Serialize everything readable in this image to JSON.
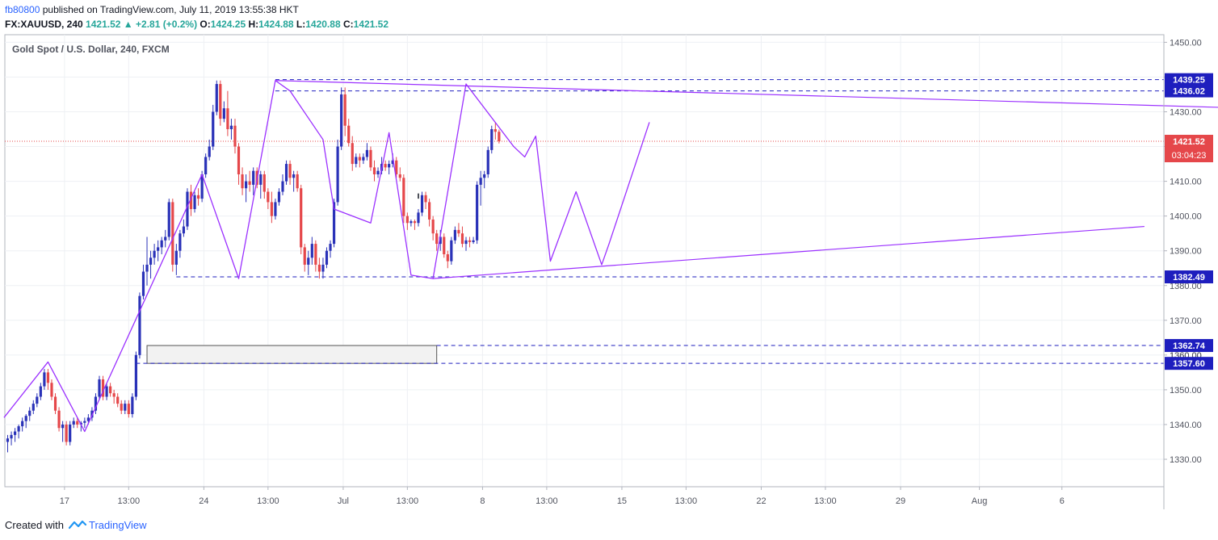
{
  "header": {
    "author": "fb80800",
    "published_text": "published on TradingView.com, July 11, 2019 13:55:38 HKT",
    "symbol": "FX:XAUUSD, 240",
    "last": "1421.52",
    "change_icon": "triangle-up-icon",
    "change": "+2.81 (+0.2%)",
    "o_label": "O:",
    "o_value": "1424.25",
    "h_label": "H:",
    "h_value": "1424.88",
    "l_label": "L:",
    "l_value": "1420.88",
    "c_label": "C:",
    "c_value": "1421.52"
  },
  "footer": {
    "created_with": "Created with",
    "brand": "TradingView",
    "logo_icon": "tradingview-logo-icon"
  },
  "colors": {
    "bull": "#2a32b8",
    "bear": "#e5474a",
    "line": "#9b30ff",
    "dashed": "#1e1ebe",
    "price_line": "#e5474a",
    "box_fill": "#f2f2f2"
  },
  "chart_data": {
    "type": "candlestick",
    "title": "Gold Spot / U.S. Dollar, 240, FXCM",
    "ylim": [
      1321,
      1456
    ],
    "y_ticks": [
      1330,
      1340,
      1350,
      1360,
      1370,
      1380,
      1390,
      1400,
      1410,
      1420,
      1430,
      1440,
      1450
    ],
    "y_tick_labels": [
      "1330.00",
      "1340.00",
      "1350.00",
      "1360.00",
      "1370.00",
      "1380.00",
      "1390.00",
      "1400.00",
      "1410.00",
      "1420.00",
      "1430.00",
      "1440.00",
      "1450.00"
    ],
    "x_ticks": [
      {
        "label": "17",
        "i": 15.5
      },
      {
        "label": "13:00",
        "i": 33
      },
      {
        "label": "24",
        "i": 53.5
      },
      {
        "label": "13:00",
        "i": 71
      },
      {
        "label": "Jul",
        "i": 91.5
      },
      {
        "label": "13:00",
        "i": 109
      },
      {
        "label": "8",
        "i": 129.5
      },
      {
        "label": "13:00",
        "i": 147
      },
      {
        "label": "15",
        "i": 167.5
      },
      {
        "label": "13:00",
        "i": 185
      },
      {
        "label": "22",
        "i": 205.5
      },
      {
        "label": "13:00",
        "i": 223
      },
      {
        "label": "29",
        "i": 243.5
      },
      {
        "label": "Aug",
        "i": 265
      },
      {
        "label": "6",
        "i": 287.5
      }
    ],
    "grid": true,
    "ohlc": [
      [
        1335.0,
        1337.0,
        1332.0,
        1336.0
      ],
      [
        1336.0,
        1338.0,
        1334.0,
        1337.0
      ],
      [
        1337.0,
        1339.0,
        1335.0,
        1338.0
      ],
      [
        1338.0,
        1340.0,
        1336.0,
        1339.5
      ],
      [
        1339.5,
        1342.0,
        1338.0,
        1341.0
      ],
      [
        1341.0,
        1343.0,
        1339.0,
        1342.5
      ],
      [
        1342.5,
        1345.0,
        1341.0,
        1344.0
      ],
      [
        1344.0,
        1347.0,
        1343.0,
        1346.0
      ],
      [
        1346.0,
        1349.0,
        1345.0,
        1348.0
      ],
      [
        1348.0,
        1352.0,
        1347.0,
        1351.0
      ],
      [
        1351.0,
        1356.0,
        1350.0,
        1355.0
      ],
      [
        1355.0,
        1356.0,
        1350.0,
        1352.0
      ],
      [
        1352.0,
        1353.0,
        1347.0,
        1348.0
      ],
      [
        1348.0,
        1349.0,
        1343.0,
        1344.0
      ],
      [
        1344.0,
        1345.0,
        1338.0,
        1339.0
      ],
      [
        1339.0,
        1341.0,
        1335.0,
        1340.0
      ],
      [
        1340.0,
        1341.0,
        1334.0,
        1335.0
      ],
      [
        1335.0,
        1341.0,
        1334.0,
        1340.0
      ],
      [
        1340.0,
        1342.0,
        1339.0,
        1341.0
      ],
      [
        1341.0,
        1342.0,
        1339.0,
        1340.0
      ],
      [
        1340.0,
        1341.0,
        1338.0,
        1340.5
      ],
      [
        1340.5,
        1342.0,
        1339.0,
        1341.0
      ],
      [
        1341.0,
        1343.0,
        1340.0,
        1342.0
      ],
      [
        1342.0,
        1345.0,
        1341.0,
        1344.0
      ],
      [
        1344.0,
        1349.0,
        1343.0,
        1348.0
      ],
      [
        1348.0,
        1354.0,
        1347.0,
        1353.0
      ],
      [
        1353.0,
        1354.0,
        1347.0,
        1348.0
      ],
      [
        1348.0,
        1352.0,
        1347.0,
        1351.0
      ],
      [
        1351.0,
        1352.0,
        1348.0,
        1349.0
      ],
      [
        1349.0,
        1350.0,
        1346.0,
        1348.0
      ],
      [
        1348.0,
        1349.0,
        1345.0,
        1346.0
      ],
      [
        1346.0,
        1347.0,
        1343.0,
        1344.0
      ],
      [
        1344.0,
        1347.0,
        1343.0,
        1346.0
      ],
      [
        1346.0,
        1347.0,
        1342.0,
        1343.0
      ],
      [
        1343.0,
        1349.0,
        1342.0,
        1348.0
      ],
      [
        1348.0,
        1361.0,
        1347.0,
        1360.0
      ],
      [
        1360.0,
        1378.0,
        1359.0,
        1377.0
      ],
      [
        1377.0,
        1386.0,
        1376.0,
        1384.0
      ],
      [
        1384.0,
        1394.0,
        1380.0,
        1386.0
      ],
      [
        1386.0,
        1390.0,
        1382.0,
        1388.0
      ],
      [
        1388.0,
        1392.0,
        1386.0,
        1390.0
      ],
      [
        1390.0,
        1393.0,
        1387.0,
        1391.0
      ],
      [
        1391.0,
        1394.0,
        1389.0,
        1393.0
      ],
      [
        1393.0,
        1396.0,
        1391.0,
        1394.0
      ],
      [
        1394.0,
        1405.0,
        1393.0,
        1404.0
      ],
      [
        1404.0,
        1405.0,
        1384.0,
        1386.0
      ],
      [
        1386.0,
        1392.0,
        1383.0,
        1390.0
      ],
      [
        1390.0,
        1396.0,
        1388.0,
        1395.0
      ],
      [
        1395.0,
        1399.0,
        1394.0,
        1397.0
      ],
      [
        1397.0,
        1408.0,
        1396.0,
        1407.0
      ],
      [
        1407.0,
        1409.0,
        1400.0,
        1402.0
      ],
      [
        1402.0,
        1407.0,
        1401.0,
        1406.0
      ],
      [
        1406.0,
        1408.0,
        1403.0,
        1405.0
      ],
      [
        1405.0,
        1413.0,
        1404.0,
        1412.0
      ],
      [
        1412.0,
        1418.0,
        1411.0,
        1417.0
      ],
      [
        1417.0,
        1422.0,
        1416.0,
        1420.0
      ],
      [
        1420.0,
        1432.0,
        1419.0,
        1430.0
      ],
      [
        1430.0,
        1439.0,
        1429.0,
        1438.0
      ],
      [
        1438.0,
        1439.0,
        1426.0,
        1428.0
      ],
      [
        1428.0,
        1433.0,
        1427.0,
        1431.0
      ],
      [
        1431.0,
        1436.0,
        1423.0,
        1425.0
      ],
      [
        1425.0,
        1428.0,
        1422.0,
        1426.0
      ],
      [
        1426.0,
        1428.0,
        1418.0,
        1420.0
      ],
      [
        1420.0,
        1421.0,
        1409.0,
        1412.0
      ],
      [
        1412.0,
        1414.0,
        1406.0,
        1408.0
      ],
      [
        1408.0,
        1412.0,
        1404.0,
        1410.0
      ],
      [
        1410.0,
        1413.0,
        1407.0,
        1409.0
      ],
      [
        1409.0,
        1414.0,
        1406.0,
        1413.0
      ],
      [
        1413.0,
        1414.0,
        1408.0,
        1409.0
      ],
      [
        1409.0,
        1413.0,
        1405.0,
        1412.0
      ],
      [
        1412.0,
        1413.0,
        1405.0,
        1407.0
      ],
      [
        1407.0,
        1408.0,
        1402.0,
        1404.0
      ],
      [
        1404.0,
        1407.0,
        1398.0,
        1400.0
      ],
      [
        1400.0,
        1405.0,
        1399.0,
        1404.0
      ],
      [
        1404.0,
        1408.0,
        1403.0,
        1407.0
      ],
      [
        1407.0,
        1412.0,
        1406.0,
        1410.0
      ],
      [
        1410.0,
        1416.0,
        1409.0,
        1415.0
      ],
      [
        1415.0,
        1416.0,
        1409.0,
        1411.0
      ],
      [
        1411.0,
        1413.0,
        1407.0,
        1412.0
      ],
      [
        1412.0,
        1413.0,
        1407.0,
        1408.0
      ],
      [
        1408.0,
        1409.0,
        1389.0,
        1391.0
      ],
      [
        1391.0,
        1392.0,
        1384.0,
        1386.0
      ],
      [
        1386.0,
        1390.0,
        1383.0,
        1388.0
      ],
      [
        1388.0,
        1394.0,
        1386.0,
        1392.0
      ],
      [
        1392.0,
        1393.0,
        1384.0,
        1386.0
      ],
      [
        1386.0,
        1388.0,
        1382.0,
        1384.0
      ],
      [
        1384.0,
        1388.0,
        1382.0,
        1386.0
      ],
      [
        1386.0,
        1391.0,
        1385.0,
        1390.0
      ],
      [
        1390.0,
        1393.0,
        1388.0,
        1392.0
      ],
      [
        1392.0,
        1405.0,
        1391.0,
        1404.0
      ],
      [
        1404.0,
        1422.0,
        1403.0,
        1420.0
      ],
      [
        1420.0,
        1437.0,
        1419.0,
        1435.0
      ],
      [
        1435.0,
        1437.0,
        1423.0,
        1426.0
      ],
      [
        1426.0,
        1428.0,
        1420.0,
        1421.0
      ],
      [
        1421.0,
        1423.0,
        1413.0,
        1415.0
      ],
      [
        1415.0,
        1418.0,
        1414.0,
        1417.0
      ],
      [
        1417.0,
        1418.0,
        1414.0,
        1416.0
      ],
      [
        1416.0,
        1418.0,
        1415.0,
        1417.0
      ],
      [
        1417.0,
        1421.0,
        1416.0,
        1419.0
      ],
      [
        1419.0,
        1420.0,
        1413.0,
        1414.0
      ],
      [
        1414.0,
        1416.0,
        1410.0,
        1412.0
      ],
      [
        1412.0,
        1414.0,
        1411.0,
        1413.0
      ],
      [
        1413.0,
        1417.0,
        1412.0,
        1415.0
      ],
      [
        1415.0,
        1416.0,
        1413.0,
        1414.0
      ],
      [
        1414.0,
        1416.0,
        1412.0,
        1415.0
      ],
      [
        1415.0,
        1418.0,
        1414.0,
        1416.0
      ],
      [
        1416.0,
        1417.0,
        1411.0,
        1412.0
      ],
      [
        1412.0,
        1414.0,
        1410.0,
        1411.0
      ],
      [
        1411.0,
        1412.0,
        1398.0,
        1400.0
      ],
      [
        1400.0,
        1401.0,
        1396.0,
        1398.0
      ],
      [
        1398.0,
        1399.0,
        1397.0,
        1398.5
      ],
      [
        1398.5,
        1399.0,
        1396.0,
        1398.0
      ],
      [
        1398.0,
        1402.0,
        1397.0,
        1401.0
      ],
      [
        1401.0,
        1407.0,
        1400.0,
        1406.0
      ],
      [
        1406.0,
        1407.0,
        1402.0,
        1404.0
      ],
      [
        1404.0,
        1405.0,
        1397.0,
        1399.0
      ],
      [
        1399.0,
        1400.0,
        1393.0,
        1395.0
      ],
      [
        1395.0,
        1396.0,
        1390.0,
        1392.0
      ],
      [
        1392.0,
        1396.0,
        1390.0,
        1394.0
      ],
      [
        1394.0,
        1395.0,
        1388.0,
        1389.0
      ],
      [
        1389.0,
        1390.0,
        1385.0,
        1387.0
      ],
      [
        1387.0,
        1394.0,
        1386.0,
        1393.0
      ],
      [
        1393.0,
        1397.0,
        1392.0,
        1396.0
      ],
      [
        1396.0,
        1398.0,
        1394.0,
        1395.0
      ],
      [
        1395.0,
        1397.0,
        1391.0,
        1392.0
      ],
      [
        1392.0,
        1394.0,
        1390.0,
        1393.0
      ],
      [
        1393.0,
        1394.0,
        1391.0,
        1392.5
      ],
      [
        1392.5,
        1394.0,
        1392.0,
        1393.0
      ],
      [
        1393.0,
        1410.0,
        1392.0,
        1409.0
      ],
      [
        1409.0,
        1413.0,
        1403.0,
        1411.0
      ],
      [
        1411.0,
        1413.0,
        1408.0,
        1412.0
      ],
      [
        1412.0,
        1420.0,
        1411.0,
        1419.0
      ],
      [
        1419.0,
        1426.0,
        1418.0,
        1425.0
      ],
      [
        1425.0,
        1427.0,
        1422.0,
        1424.25
      ],
      [
        1424.25,
        1424.88,
        1420.88,
        1421.52
      ]
    ],
    "tick_mark": {
      "i": 112,
      "low": 1405,
      "high": 1406.5
    },
    "zigzag": [
      [
        -1,
        1342
      ],
      [
        11,
        1358
      ],
      [
        21,
        1338
      ],
      [
        53,
        1412
      ],
      [
        63,
        1382
      ],
      [
        73,
        1439
      ],
      [
        77,
        1436
      ],
      [
        86,
        1422
      ],
      [
        89,
        1402
      ],
      [
        99,
        1398
      ],
      [
        104,
        1424
      ],
      [
        110,
        1383
      ],
      [
        116,
        1382
      ],
      [
        125,
        1438
      ],
      [
        138,
        1420
      ],
      [
        141,
        1417
      ],
      [
        144,
        1423
      ],
      [
        148,
        1387
      ],
      [
        155,
        1407
      ],
      [
        162,
        1386
      ],
      [
        164,
        1392
      ],
      [
        175,
        1427
      ]
    ],
    "trendlines": [
      {
        "from": [
          73,
          1439
        ],
        "to": [
          340,
          1431
        ]
      },
      {
        "from": [
          116,
          1382
        ],
        "to": [
          310,
          1397
        ]
      }
    ],
    "levels": [
      {
        "value": 1439.25,
        "label": "1439.25",
        "from_i": 73
      },
      {
        "value": 1436.02,
        "label": "1436.02",
        "from_i": 73
      },
      {
        "value": 1382.49,
        "label": "1382.49",
        "from_i": 46
      },
      {
        "value": 1362.74,
        "label": "1362.74",
        "from_i": 117
      },
      {
        "value": 1357.6,
        "label": "1357.60",
        "from_i": 35
      }
    ],
    "box": {
      "from_i": 38,
      "to_i": 117,
      "top": 1362.74,
      "bottom": 1357.6
    },
    "current_price": {
      "value": 1421.52,
      "label": "1421.52",
      "countdown": "03:04:23"
    },
    "hidden_label": "1360.00"
  }
}
